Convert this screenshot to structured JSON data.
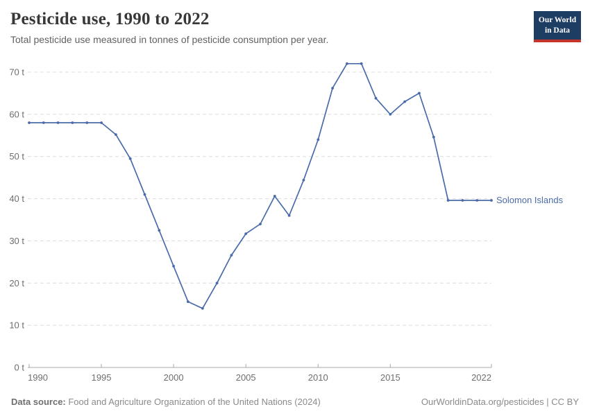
{
  "header": {
    "title": "Pesticide use, 1990 to 2022",
    "subtitle": "Total pesticide use measured in tonnes of pesticide consumption per year."
  },
  "logo": {
    "line1": "Our World",
    "line2": "in Data",
    "bg_color": "#1d3d63",
    "accent_color": "#c4352c"
  },
  "chart_data": {
    "type": "line",
    "title": "Pesticide use, 1990 to 2022",
    "unit": "t",
    "x": [
      1990,
      1991,
      1992,
      1993,
      1994,
      1995,
      1996,
      1997,
      1998,
      1999,
      2000,
      2001,
      2002,
      2003,
      2004,
      2005,
      2006,
      2007,
      2008,
      2009,
      2010,
      2011,
      2012,
      2013,
      2014,
      2015,
      2016,
      2017,
      2018,
      2019,
      2020,
      2021,
      2022
    ],
    "series": [
      {
        "name": "Solomon Islands",
        "color": "#4a6bab",
        "values": [
          58,
          58,
          58,
          58,
          58,
          58,
          55.2,
          49.5,
          41,
          32.5,
          24,
          15.6,
          14,
          20,
          26.6,
          31.7,
          34,
          40.6,
          36,
          44.4,
          54,
          66.2,
          72,
          72,
          63.8,
          60,
          63,
          65,
          54.6,
          39.6,
          39.6,
          39.6,
          39.6
        ]
      }
    ],
    "ylim": [
      0,
      70
    ],
    "yticks": [
      0,
      10,
      20,
      30,
      40,
      50,
      60,
      70
    ],
    "ytick_suffix": " t",
    "xticks": [
      1990,
      1995,
      2000,
      2005,
      2010,
      2015,
      2022
    ],
    "grid": "horizontal-dashed",
    "legend_position": "right-of-line",
    "axis_color": "#a9a9a9",
    "grid_color": "#dcdcdc",
    "tick_label_color": "#6e6e6e"
  },
  "footer": {
    "source_label": "Data source:",
    "source_text": " Food and Agriculture Organization of the United Nations (2024)",
    "right_text": "OurWorldinData.org/pesticides | CC BY"
  }
}
